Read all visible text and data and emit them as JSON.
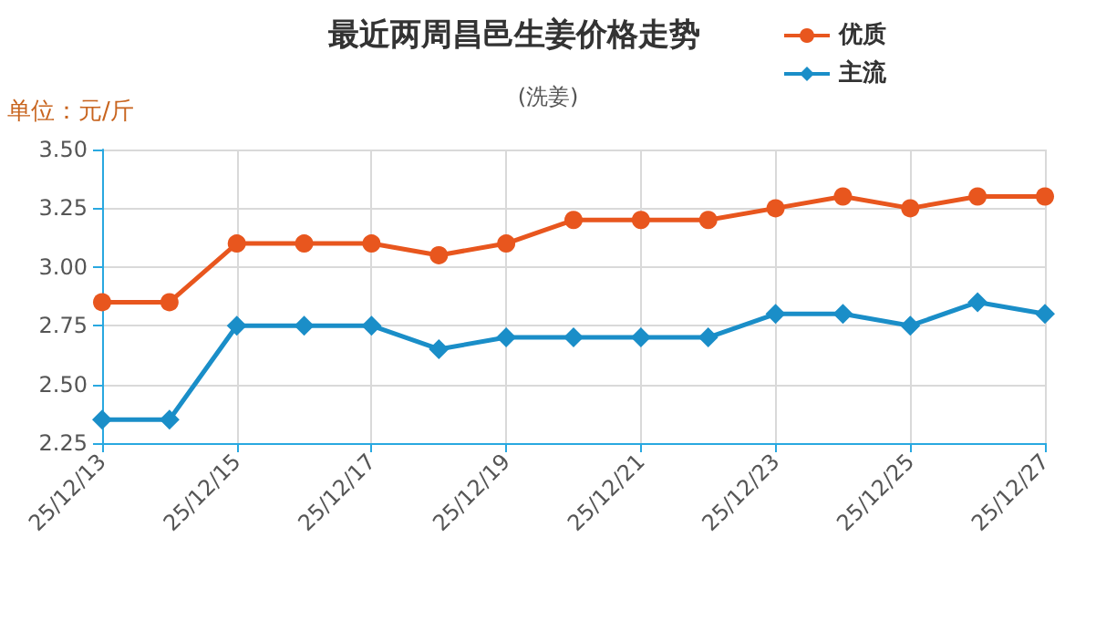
{
  "chart_data": {
    "type": "line",
    "title": "最近两周昌邑生姜价格走势",
    "subtitle": "(洗姜)",
    "ylabel": "单位：元/斤",
    "categories": [
      "25/12/13",
      null,
      "25/12/15",
      null,
      "25/12/17",
      null,
      "25/12/19",
      null,
      "25/12/21",
      null,
      "25/12/23",
      null,
      "25/12/25",
      null,
      "25/12/27"
    ],
    "series": [
      {
        "name": "优质",
        "color": "#e8561e",
        "marker": "circle",
        "values": [
          2.85,
          2.85,
          3.1,
          3.1,
          3.1,
          3.05,
          3.1,
          3.2,
          3.2,
          3.2,
          3.25,
          3.3,
          3.25,
          3.3,
          3.3
        ]
      },
      {
        "name": "主流",
        "color": "#1a8ec8",
        "marker": "diamond",
        "values": [
          2.35,
          2.35,
          2.75,
          2.75,
          2.75,
          2.65,
          2.7,
          2.7,
          2.7,
          2.7,
          2.8,
          2.8,
          2.75,
          2.85,
          2.8
        ]
      }
    ],
    "ylim": [
      2.25,
      3.5
    ],
    "yticks": [
      2.25,
      {
        "value": 2.5,
        "label": "2.50"
      },
      2.75,
      {
        "value": 3,
        "label": "3.00"
      },
      3.25,
      {
        "value": 3.5,
        "label": "3.50"
      }
    ],
    "grid": true,
    "legend": "top right",
    "line_style": "solid"
  }
}
